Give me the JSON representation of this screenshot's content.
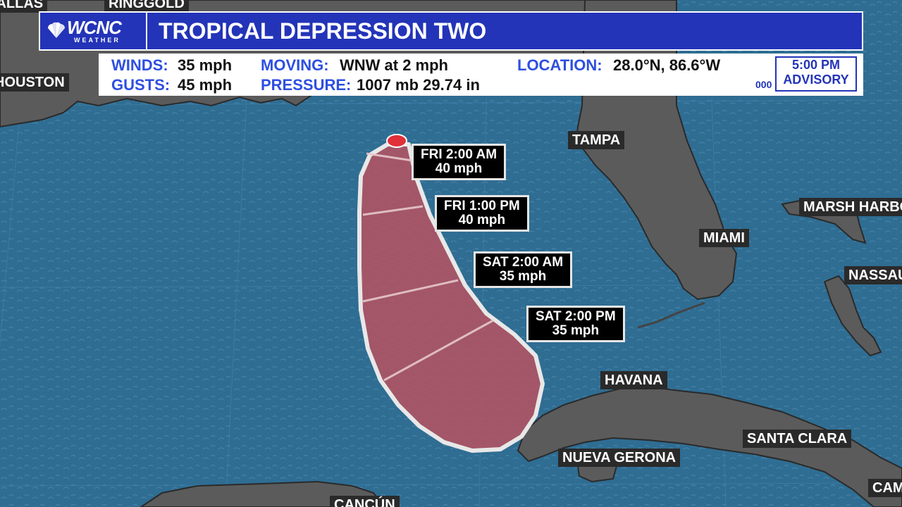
{
  "header": {
    "logo": "WCNC",
    "logo_sub": "WEATHER",
    "title": "TROPICAL DEPRESSION TWO"
  },
  "stats": {
    "winds_label": "WINDS:",
    "winds_value": "35 mph",
    "gusts_label": "GUSTS:",
    "gusts_value": "45 mph",
    "moving_label": "MOVING:",
    "moving_value": "WNW at 2 mph",
    "pressure_label": "PRESSURE:",
    "pressure_value": "1007 mb 29.74 in",
    "location_label": "LOCATION:",
    "location_value": "28.0°N, 86.6°W",
    "advisory_time": "5:00 PM",
    "advisory_label": "ADVISORY",
    "agency_mark": "000"
  },
  "forecast_points": [
    {
      "time": "FRI 2:00 AM",
      "wind": "40 mph"
    },
    {
      "time": "FRI 1:00 PM",
      "wind": "40 mph"
    },
    {
      "time": "SAT 2:00 AM",
      "wind": "35 mph"
    },
    {
      "time": "SAT 2:00 PM",
      "wind": "35 mph"
    }
  ],
  "cities": {
    "dallas": "DALLAS",
    "ringgold": "RINGGOLD",
    "houston": "HOUSTON",
    "tampa": "TAMPA",
    "miami": "MIAMI",
    "marsh_harbour": "MARSH HARBO",
    "nassau": "NASSAU",
    "havana": "HAVANA",
    "santa_clara": "SANTA CLARA",
    "nueva_gerona": "NUEVA GERONA",
    "cancun": "CANCÚN",
    "camaguey": "CAM"
  },
  "colors": {
    "ocean": "#2f6d93",
    "land": "#5b5b5b",
    "cone_fill": "#c0505e",
    "header_blue": "#2334b8",
    "label_blue": "#2e4fe0",
    "storm_dot": "#e0303a"
  }
}
